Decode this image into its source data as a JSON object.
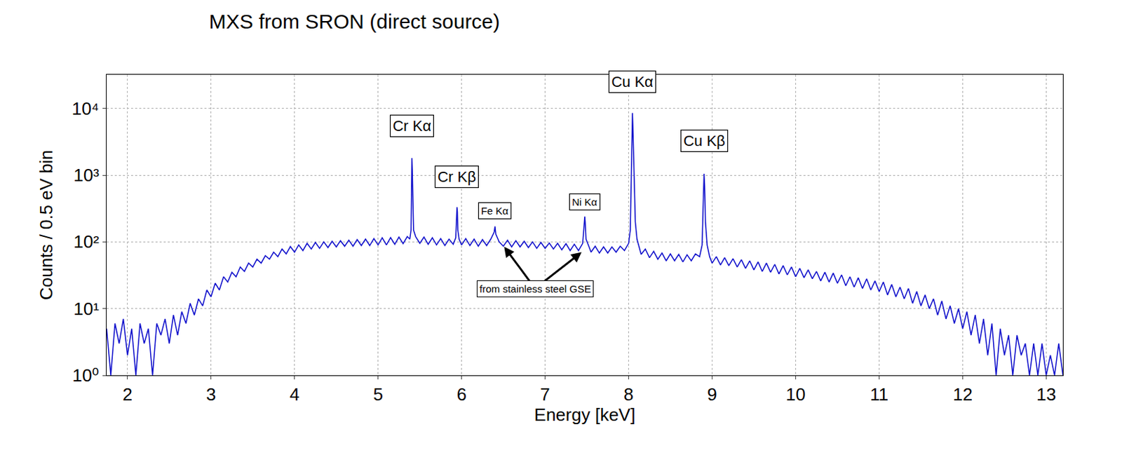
{
  "chart_data": {
    "type": "line",
    "title": "MXS from SRON (direct source)",
    "x_label": "Energy [keV]",
    "y_label": "Counts / 0.5 eV bin",
    "log": "y",
    "grid": true,
    "xlim": [
      1.75,
      13.2
    ],
    "ylim": [
      1,
      32000
    ],
    "xticks": [
      2,
      3,
      4,
      5,
      6,
      7,
      8,
      9,
      10,
      11,
      12,
      13
    ],
    "yticks": [
      {
        "value": 1,
        "label": "10⁰"
      },
      {
        "value": 10,
        "label": "10¹"
      },
      {
        "value": 100,
        "label": "10²"
      },
      {
        "value": 1000,
        "label": "10³"
      },
      {
        "value": 10000,
        "label": "10⁴"
      }
    ],
    "series": [
      {
        "color": "#1212cc",
        "x": [
          1.75,
          1.8,
          1.85,
          1.9,
          1.95,
          2.0,
          2.05,
          2.1,
          2.15,
          2.2,
          2.25,
          2.3,
          2.35,
          2.4,
          2.45,
          2.5,
          2.55,
          2.6,
          2.65,
          2.7,
          2.75,
          2.8,
          2.85,
          2.9,
          2.95,
          3.0,
          3.05,
          3.1,
          3.15,
          3.2,
          3.25,
          3.3,
          3.35,
          3.4,
          3.45,
          3.5,
          3.55,
          3.6,
          3.65,
          3.7,
          3.75,
          3.8,
          3.85,
          3.9,
          3.95,
          4.0,
          4.05,
          4.1,
          4.15,
          4.2,
          4.25,
          4.3,
          4.35,
          4.4,
          4.45,
          4.5,
          4.55,
          4.6,
          4.65,
          4.7,
          4.75,
          4.8,
          4.85,
          4.9,
          4.95,
          5.0,
          5.05,
          5.1,
          5.15,
          5.2,
          5.25,
          5.3,
          5.35,
          5.38,
          5.395,
          5.4,
          5.405,
          5.41,
          5.415,
          5.425,
          5.45,
          5.5,
          5.55,
          5.6,
          5.65,
          5.7,
          5.75,
          5.8,
          5.85,
          5.9,
          5.93,
          5.94,
          5.945,
          5.95,
          5.955,
          5.97,
          6.0,
          6.05,
          6.1,
          6.15,
          6.2,
          6.25,
          6.3,
          6.35,
          6.39,
          6.4,
          6.41,
          6.45,
          6.5,
          6.55,
          6.6,
          6.65,
          6.7,
          6.75,
          6.8,
          6.85,
          6.9,
          6.95,
          7.0,
          7.05,
          7.1,
          7.15,
          7.2,
          7.25,
          7.3,
          7.35,
          7.4,
          7.45,
          7.47,
          7.475,
          7.48,
          7.49,
          7.52,
          7.55,
          7.6,
          7.65,
          7.7,
          7.75,
          7.8,
          7.85,
          7.9,
          7.95,
          8.0,
          8.02,
          8.035,
          8.042,
          8.046,
          8.05,
          8.055,
          8.065,
          8.08,
          8.1,
          8.15,
          8.2,
          8.25,
          8.3,
          8.35,
          8.4,
          8.45,
          8.5,
          8.55,
          8.6,
          8.65,
          8.7,
          8.75,
          8.8,
          8.85,
          8.88,
          8.895,
          8.903,
          8.91,
          8.92,
          8.94,
          8.97,
          9.0,
          9.05,
          9.1,
          9.15,
          9.2,
          9.25,
          9.3,
          9.35,
          9.4,
          9.45,
          9.5,
          9.55,
          9.6,
          9.65,
          9.7,
          9.75,
          9.8,
          9.85,
          9.9,
          9.95,
          10.0,
          10.05,
          10.1,
          10.15,
          10.2,
          10.25,
          10.3,
          10.35,
          10.4,
          10.45,
          10.5,
          10.55,
          10.6,
          10.65,
          10.7,
          10.75,
          10.8,
          10.85,
          10.9,
          10.95,
          11.0,
          11.05,
          11.1,
          11.15,
          11.2,
          11.25,
          11.3,
          11.35,
          11.4,
          11.45,
          11.5,
          11.55,
          11.6,
          11.65,
          11.7,
          11.75,
          11.8,
          11.85,
          11.9,
          11.95,
          12.0,
          12.05,
          12.1,
          12.15,
          12.2,
          12.25,
          12.3,
          12.35,
          12.4,
          12.45,
          12.5,
          12.55,
          12.6,
          12.65,
          12.7,
          12.75,
          12.8,
          12.85,
          12.9,
          12.95,
          13.0,
          13.05,
          13.1,
          13.15,
          13.2
        ],
        "values": [
          5,
          1,
          6,
          3,
          7,
          2,
          5,
          1,
          6,
          3,
          5,
          1,
          6,
          4,
          7,
          3,
          8,
          4,
          9,
          6,
          12,
          8,
          14,
          11,
          19,
          15,
          24,
          19,
          30,
          25,
          35,
          30,
          42,
          36,
          48,
          42,
          55,
          48,
          62,
          55,
          70,
          60,
          78,
          66,
          85,
          70,
          90,
          74,
          95,
          78,
          98,
          80,
          100,
          82,
          102,
          84,
          104,
          86,
          106,
          86,
          108,
          88,
          110,
          88,
          112,
          90,
          115,
          90,
          116,
          92,
          118,
          94,
          120,
          110,
          150,
          700,
          1800,
          1200,
          400,
          150,
          120,
          95,
          118,
          92,
          115,
          90,
          112,
          88,
          110,
          92,
          115,
          200,
          330,
          280,
          150,
          110,
          90,
          112,
          88,
          110,
          86,
          108,
          88,
          110,
          140,
          170,
          130,
          100,
          86,
          106,
          84,
          104,
          84,
          102,
          82,
          100,
          80,
          98,
          80,
          96,
          78,
          95,
          76,
          94,
          74,
          92,
          74,
          95,
          180,
          240,
          200,
          110,
          88,
          70,
          86,
          68,
          84,
          68,
          84,
          70,
          86,
          74,
          95,
          150,
          1500,
          5000,
          8500,
          6000,
          3000,
          800,
          200,
          110,
          65,
          78,
          58,
          72,
          55,
          68,
          52,
          66,
          52,
          65,
          50,
          64,
          52,
          66,
          60,
          90,
          400,
          1050,
          700,
          200,
          90,
          60,
          48,
          60,
          45,
          58,
          44,
          56,
          42,
          54,
          40,
          52,
          38,
          50,
          36,
          48,
          35,
          46,
          33,
          44,
          32,
          42,
          30,
          40,
          29,
          38,
          28,
          36,
          26,
          35,
          25,
          34,
          24,
          32,
          22,
          30,
          21,
          29,
          20,
          28,
          19,
          26,
          18,
          25,
          16,
          23,
          15,
          21,
          14,
          20,
          12,
          18,
          11,
          16,
          10,
          14,
          8,
          13,
          7,
          11,
          6,
          10,
          5,
          9,
          4,
          8,
          3,
          7,
          2,
          6,
          1,
          5,
          2,
          4,
          1,
          4,
          2,
          3,
          1,
          3,
          1,
          3,
          1,
          2,
          1,
          3,
          1
        ]
      }
    ],
    "annotations": [
      {
        "text": "Cr Kα",
        "x": 5.405,
        "y": 5400
      },
      {
        "text": "Cr Kβ",
        "x": 5.945,
        "y": 950
      },
      {
        "text": "Fe Kα",
        "x": 6.4,
        "y": 290
      },
      {
        "text": "Ni Kα",
        "x": 7.475,
        "y": 400
      },
      {
        "text": "Cu Kα",
        "x": 8.046,
        "y": 25000
      },
      {
        "text": "Cu Kβ",
        "x": 8.903,
        "y": 3300
      },
      {
        "text": "from stainless steel GSE",
        "x": 6.88,
        "y": 20,
        "arrows": [
          {
            "x": 6.5,
            "y": 88
          },
          {
            "x": 7.45,
            "y": 72
          }
        ]
      }
    ]
  }
}
